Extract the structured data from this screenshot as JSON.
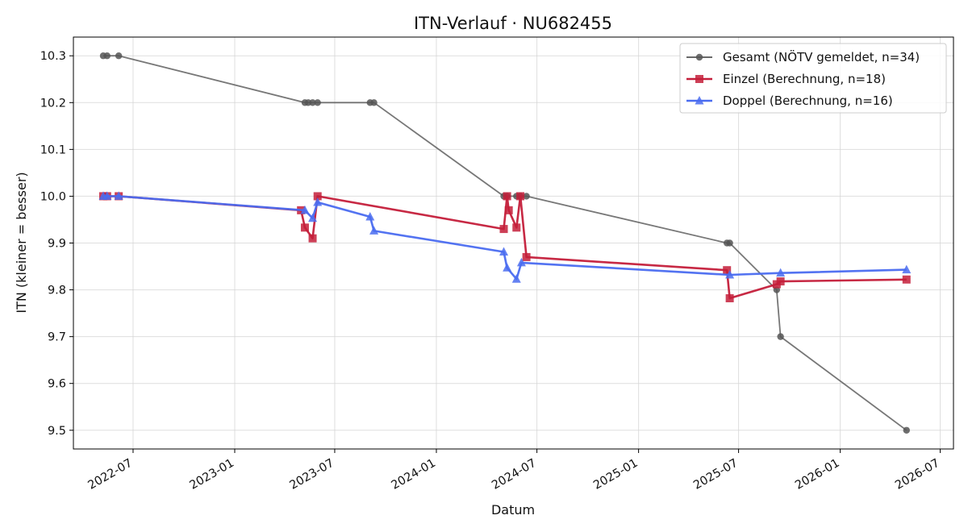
{
  "chart_data": {
    "type": "line",
    "title": "ITN-Verlauf · NU682455",
    "xlabel": "Datum",
    "ylabel": "ITN  (kleiner = besser)",
    "x_axis_type": "date",
    "xlim": [
      "2022-03-15",
      "2026-07-25"
    ],
    "ylim": [
      9.46,
      10.34
    ],
    "x_ticks": [
      "2022-07-01",
      "2023-01-01",
      "2023-07-01",
      "2024-01-01",
      "2024-07-01",
      "2025-01-01",
      "2025-07-01",
      "2026-01-01",
      "2026-07-01"
    ],
    "x_tick_labels": [
      "2022-07",
      "2023-01",
      "2023-07",
      "2024-01",
      "2024-07",
      "2025-01",
      "2025-07",
      "2026-01",
      "2026-07"
    ],
    "y_ticks": [
      9.5,
      9.6,
      9.7,
      9.8,
      9.9,
      10.0,
      10.1,
      10.2,
      10.3
    ],
    "y_tick_labels": [
      "9.5",
      "9.6",
      "9.7",
      "9.8",
      "9.9",
      "10.0",
      "10.1",
      "10.2",
      "10.3"
    ],
    "grid": true,
    "legend_position": "top-right",
    "series": [
      {
        "name": "Gesamt (NÖTV gemeldet, n=34)",
        "color": "#555555",
        "marker": "circle",
        "points": [
          [
            "2022-05-08",
            10.3
          ],
          [
            "2022-05-15",
            10.3
          ],
          [
            "2022-06-05",
            10.3
          ],
          [
            "2023-05-08",
            10.2
          ],
          [
            "2023-05-14",
            10.2
          ],
          [
            "2023-05-22",
            10.2
          ],
          [
            "2023-05-31",
            10.2
          ],
          [
            "2023-09-03",
            10.2
          ],
          [
            "2023-09-10",
            10.2
          ],
          [
            "2024-05-02",
            10.0
          ],
          [
            "2024-05-08",
            10.0
          ],
          [
            "2024-05-25",
            10.0
          ],
          [
            "2024-06-01",
            10.0
          ],
          [
            "2024-06-12",
            10.0
          ],
          [
            "2025-06-10",
            9.9
          ],
          [
            "2025-06-15",
            9.9
          ],
          [
            "2025-09-08",
            9.8
          ],
          [
            "2025-09-15",
            9.7
          ],
          [
            "2026-05-01",
            9.5
          ]
        ]
      },
      {
        "name": "Einzel (Berechnung, n=18)",
        "color": "#c41e3a",
        "marker": "square",
        "points": [
          [
            "2022-05-08",
            10.0
          ],
          [
            "2022-05-15",
            10.0
          ],
          [
            "2022-06-05",
            10.0
          ],
          [
            "2023-05-01",
            9.97
          ],
          [
            "2023-05-08",
            9.933
          ],
          [
            "2023-05-22",
            9.91
          ],
          [
            "2023-05-31",
            10.0
          ],
          [
            "2024-05-02",
            9.93
          ],
          [
            "2024-05-08",
            10.0
          ],
          [
            "2024-05-11",
            9.97
          ],
          [
            "2024-05-25",
            9.933
          ],
          [
            "2024-06-01",
            10.0
          ],
          [
            "2024-06-12",
            9.87
          ],
          [
            "2025-06-10",
            9.842
          ],
          [
            "2025-06-15",
            9.782
          ],
          [
            "2025-09-08",
            9.812
          ],
          [
            "2025-09-15",
            9.818
          ],
          [
            "2026-05-01",
            9.822
          ]
        ]
      },
      {
        "name": "Doppel (Berechnung, n=16)",
        "color": "#4a6cf0",
        "marker": "triangle",
        "points": [
          [
            "2022-05-08",
            10.0
          ],
          [
            "2022-05-15",
            10.0
          ],
          [
            "2022-06-05",
            10.0
          ],
          [
            "2023-05-08",
            9.97
          ],
          [
            "2023-05-22",
            9.953
          ],
          [
            "2023-05-31",
            9.987
          ],
          [
            "2023-09-03",
            9.956
          ],
          [
            "2023-09-10",
            9.926
          ],
          [
            "2024-05-02",
            9.881
          ],
          [
            "2024-05-08",
            9.847
          ],
          [
            "2024-05-25",
            9.823
          ],
          [
            "2024-06-03",
            9.858
          ],
          [
            "2025-06-15",
            9.832
          ],
          [
            "2025-09-15",
            9.836
          ],
          [
            "2026-05-01",
            9.843
          ]
        ]
      }
    ]
  }
}
